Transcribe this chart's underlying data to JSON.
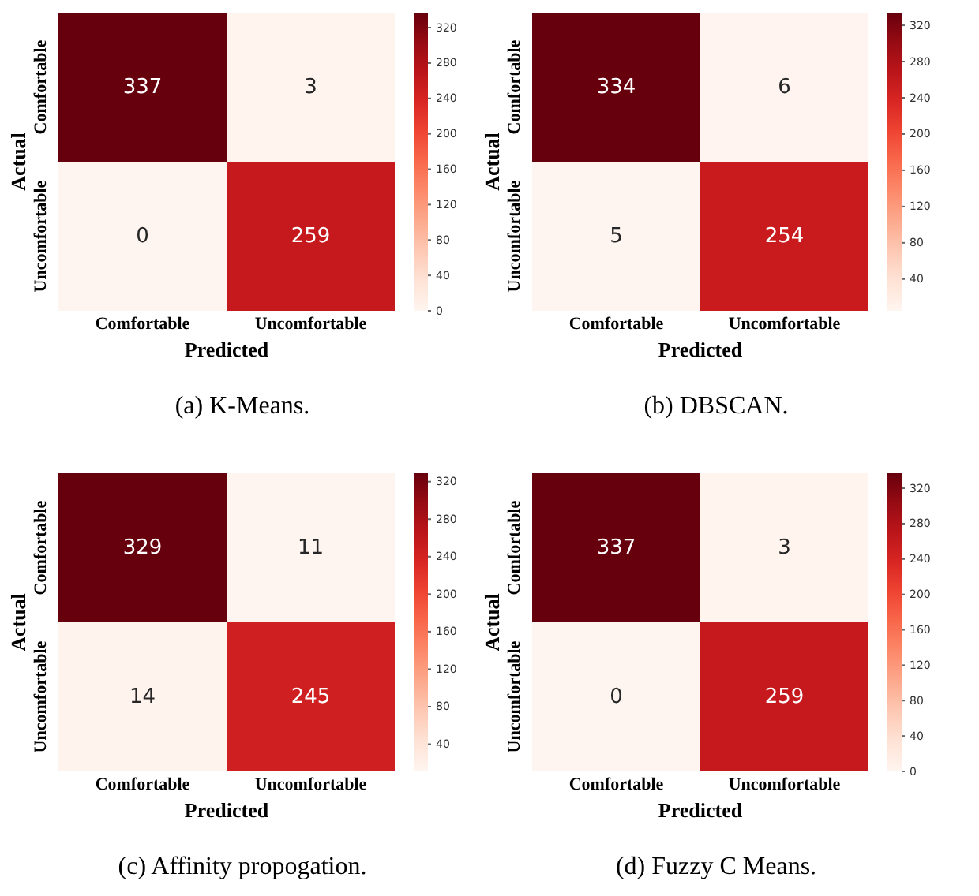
{
  "chart_data": [
    {
      "type": "heatmap",
      "title": "(a)  K-Means.",
      "xlabel": "Predicted",
      "ylabel": "Actual",
      "categories": [
        "Comfortable",
        "Uncomfortable"
      ],
      "y_categories": [
        "Comfortable",
        "Uncomfortable"
      ],
      "cells": [
        [
          337,
          3
        ],
        [
          0,
          259
        ]
      ],
      "clim": [
        0,
        337
      ],
      "cticks": [
        0,
        40,
        80,
        120,
        160,
        200,
        240,
        280,
        320
      ],
      "data_labels": true
    },
    {
      "type": "heatmap",
      "title": "(b)  DBSCAN.",
      "xlabel": "Predicted",
      "ylabel": "Actual",
      "categories": [
        "Comfortable",
        "Uncomfortable"
      ],
      "y_categories": [
        "Comfortable",
        "Uncomfortable"
      ],
      "cells": [
        [
          334,
          6
        ],
        [
          5,
          254
        ]
      ],
      "clim": [
        5,
        334
      ],
      "cticks": [
        40,
        80,
        120,
        160,
        200,
        240,
        280,
        320
      ],
      "data_labels": true
    },
    {
      "type": "heatmap",
      "title": "(c)  Affinity propogation.",
      "xlabel": "Predicted",
      "ylabel": "Actual",
      "categories": [
        "Comfortable",
        "Uncomfortable"
      ],
      "y_categories": [
        "Comfortable",
        "Uncomfortable"
      ],
      "cells": [
        [
          329,
          11
        ],
        [
          14,
          245
        ]
      ],
      "clim": [
        11,
        329
      ],
      "cticks": [
        40,
        80,
        120,
        160,
        200,
        240,
        280,
        320
      ],
      "data_labels": true
    },
    {
      "type": "heatmap",
      "title": "(d)  Fuzzy C Means.",
      "xlabel": "Predicted",
      "ylabel": "Actual",
      "categories": [
        "Comfortable",
        "Uncomfortable"
      ],
      "y_categories": [
        "Comfortable",
        "Uncomfortable"
      ],
      "cells": [
        [
          337,
          3
        ],
        [
          0,
          259
        ]
      ],
      "clim": [
        0,
        337
      ],
      "cticks": [
        0,
        40,
        80,
        120,
        160,
        200,
        240,
        280,
        320
      ],
      "data_labels": true
    }
  ]
}
